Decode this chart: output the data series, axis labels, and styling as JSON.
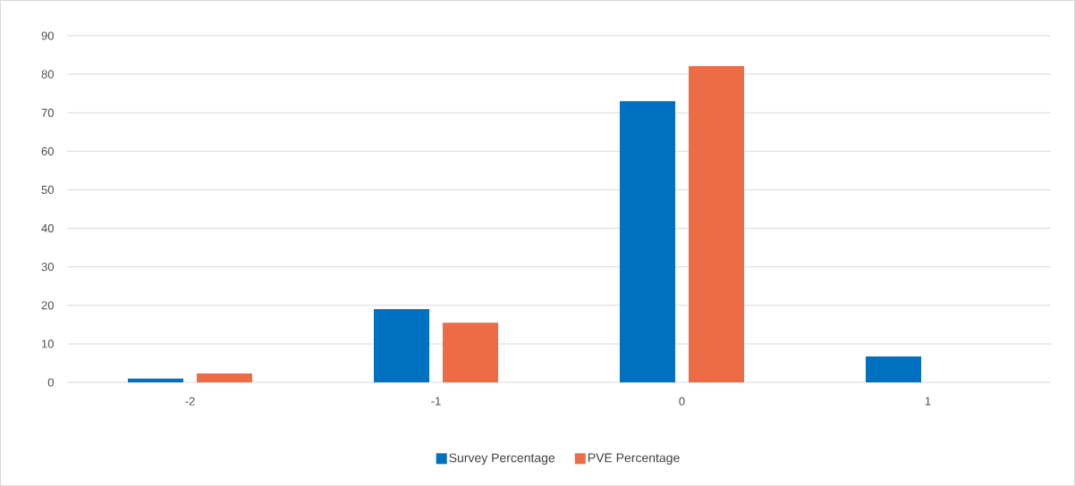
{
  "chart_data": {
    "type": "bar",
    "categories": [
      "-2",
      "-1",
      "0",
      "1"
    ],
    "series": [
      {
        "name": "Survey Percentage",
        "color": "#0070c0",
        "values": [
          1.0,
          19.0,
          73.0,
          6.7
        ]
      },
      {
        "name": "PVE Percentage",
        "color": "#ed6b45",
        "values": [
          2.3,
          15.5,
          82.1,
          0
        ]
      }
    ],
    "ylim": [
      0,
      90
    ],
    "yticks": [
      0,
      10,
      20,
      30,
      40,
      50,
      60,
      70,
      80,
      90
    ],
    "grid": "y",
    "legend": "bottom"
  }
}
